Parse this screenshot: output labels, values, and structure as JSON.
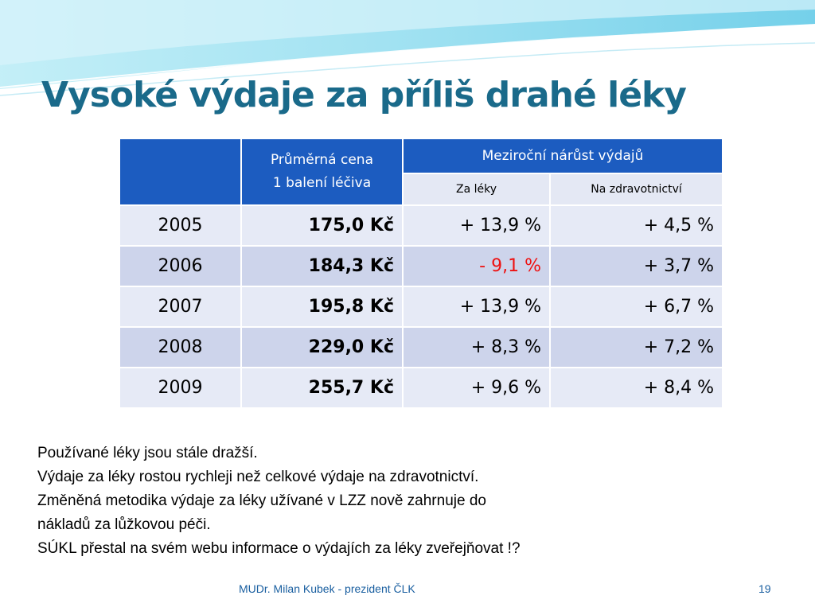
{
  "slide": {
    "title": "Vysoké výdaje za příliš drahé léky",
    "footer": "MUDr. Milan Kubek - prezident ČLK",
    "page_number": "19"
  },
  "table": {
    "col_price_line1": "Průměrná cena",
    "col_price_line2": "1 balení léčiva",
    "col_growth": "Meziroční nárůst výdajů",
    "sub_drugs": "Za léky",
    "sub_health": "Na zdravotnictví",
    "rows": [
      {
        "year": "2005",
        "price": "175,0 Kč",
        "drugs": "+ 13,9 %",
        "health": "+ 4,5 %"
      },
      {
        "year": "2006",
        "price": "184,3 Kč",
        "drugs": "- 9,1 %",
        "health": "+ 3,7 %"
      },
      {
        "year": "2007",
        "price": "195,8 Kč",
        "drugs": "+ 13,9 %",
        "health": "+ 6,7 %"
      },
      {
        "year": "2008",
        "price": "229,0 Kč",
        "drugs": "+ 8,3 %",
        "health": "+ 7,2 %"
      },
      {
        "year": "2009",
        "price": "255,7 Kč",
        "drugs": "+ 9,6 %",
        "health": "+ 8,4 %"
      }
    ]
  },
  "notes": [
    "Používané léky jsou stále dražší.",
    "Výdaje za léky rostou rychleji než celkové výdaje na zdravotnictví.",
    "Změněná metodika výdaje za léky užívané v LZZ nově zahrnuje do",
    "nákladů za lůžkovou péči.",
    "SÚKL přestal na svém webu informace o výdajích za léky zveřejňovat  !?"
  ],
  "colors": {
    "title": "#1a6a8a",
    "header_bg": "#1c5cc0",
    "row_light": "#e6eaf6",
    "row_dark": "#cdd4eb",
    "negative": "#ee1111",
    "wave": "#7fd4ea"
  }
}
